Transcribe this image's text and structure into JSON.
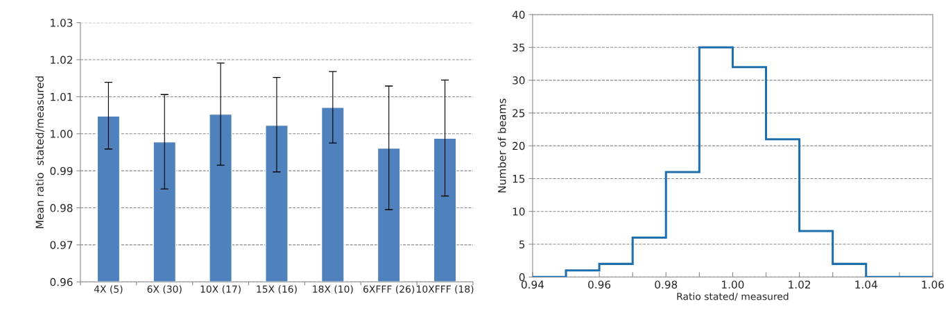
{
  "chart_data": [
    {
      "type": "bar",
      "ylabel": "Mean ratio  stated/measured",
      "categories": [
        "4X (5)",
        "6X (30)",
        "10X (17)",
        "15X (16)",
        "18X (10)",
        "6XFFF (26)",
        "10XFFF (18)"
      ],
      "values": [
        1.0048,
        0.9978,
        1.0053,
        1.0023,
        1.0071,
        0.9961,
        0.9988
      ],
      "errors": [
        [
          0.9959,
          1.0139
        ],
        [
          0.9851,
          1.0106
        ],
        [
          0.9915,
          1.0191
        ],
        [
          0.9897,
          1.0152
        ],
        [
          0.9975,
          1.0168
        ],
        [
          0.9795,
          1.0129
        ],
        [
          0.9832,
          1.0145
        ]
      ],
      "color": "#4f81bd",
      "ylim": [
        0.96,
        1.03
      ],
      "yticks": [
        {
          "value": 0.96,
          "label": "0.96"
        },
        {
          "value": 0.97,
          "label": "0.97"
        },
        {
          "value": 0.98,
          "label": "0.98"
        },
        {
          "value": 0.99,
          "label": "0.99"
        },
        {
          "value": 1.0,
          "label": "1.00"
        },
        {
          "value": 1.01,
          "label": "1.01"
        },
        {
          "value": 1.02,
          "label": "1.02"
        },
        {
          "value": 1.03,
          "label": "1.03"
        }
      ],
      "grid": "y"
    },
    {
      "type": "histogram",
      "xlabel": "Ratio stated/ measured",
      "ylabel": "Number of beams",
      "bins": [
        0.94,
        0.95,
        0.96,
        0.97,
        0.98,
        0.99,
        1.0,
        1.01,
        1.02,
        1.03,
        1.04,
        1.05,
        1.06
      ],
      "values": [
        0,
        1,
        2,
        6,
        16,
        35,
        32,
        21,
        7,
        2,
        0,
        0
      ],
      "color": "#1f6fad",
      "xlim": [
        0.94,
        1.06
      ],
      "xticks": [
        {
          "value": 0.94,
          "label": "0.94"
        },
        {
          "value": 0.95,
          "label": null
        },
        {
          "value": 0.96,
          "label": "0.96"
        },
        {
          "value": 0.97,
          "label": null
        },
        {
          "value": 0.98,
          "label": "0.98"
        },
        {
          "value": 0.99,
          "label": null
        },
        {
          "value": 1.0,
          "label": "1.00"
        },
        {
          "value": 1.01,
          "label": null
        },
        {
          "value": 1.02,
          "label": "1.02"
        },
        {
          "value": 1.03,
          "label": null
        },
        {
          "value": 1.04,
          "label": "1.04"
        },
        {
          "value": 1.05,
          "label": null
        },
        {
          "value": 1.06,
          "label": "1.06"
        }
      ],
      "ylim": [
        0,
        40
      ],
      "yticks": [
        0,
        5,
        10,
        15,
        20,
        25,
        30,
        35,
        40
      ],
      "grid": "y"
    }
  ]
}
